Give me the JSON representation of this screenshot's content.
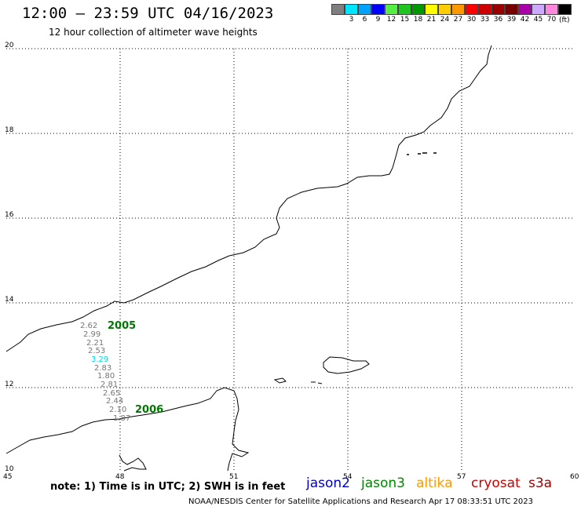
{
  "header": {
    "title": "12:00 – 23:59 UTC 04/16/2023",
    "subtitle": "12 hour collection of altimeter wave heights"
  },
  "legend": {
    "colors": [
      "#7f7f7f",
      "#00e5ff",
      "#00a2ff",
      "#0000ff",
      "#55ee44",
      "#22c422",
      "#009900",
      "#ffff00",
      "#ffcc00",
      "#ff9900",
      "#ff0000",
      "#cc0000",
      "#990000",
      "#770000",
      "#aa00aa",
      "#ccaaff",
      "#ff88dd",
      "#000000"
    ],
    "labels": [
      "3",
      "6",
      "9",
      "12",
      "15",
      "18",
      "21",
      "24",
      "27",
      "30",
      "33",
      "36",
      "39",
      "42",
      "45",
      "70"
    ],
    "unit": "(ft)"
  },
  "axes": {
    "lat_labels": [
      "20",
      "18",
      "16",
      "14",
      "12",
      "10"
    ],
    "lon_labels": [
      "45",
      "48",
      "51",
      "54",
      "57",
      "60"
    ]
  },
  "observations": [
    {
      "value": "2.62",
      "color": "#777777"
    },
    {
      "value": "2.99",
      "color": "#777777"
    },
    {
      "value": "2.21",
      "color": "#777777"
    },
    {
      "value": "2.53",
      "color": "#777777"
    },
    {
      "value": "3.29",
      "color": "#00d8e8"
    },
    {
      "value": "2.83",
      "color": "#777777"
    },
    {
      "value": "1.80",
      "color": "#777777"
    },
    {
      "value": "2.81",
      "color": "#777777"
    },
    {
      "value": "2.65",
      "color": "#777777"
    },
    {
      "value": "2.44",
      "color": "#777777"
    },
    {
      "value": "2.10",
      "color": "#777777"
    },
    {
      "value": "1.87",
      "color": "#777777"
    }
  ],
  "passes": [
    {
      "label": "2005",
      "color": "#007700"
    },
    {
      "label": "2006",
      "color": "#007700"
    }
  ],
  "footer": {
    "note": "note: 1) Time is in UTC; 2) SWH is in feet",
    "satellites": [
      {
        "name": "jason2",
        "color": "#0000cc"
      },
      {
        "name": "jason3",
        "color": "#008800"
      },
      {
        "name": "altika",
        "color": "#ff9900"
      },
      {
        "name": "cryosat",
        "color": "#cc0000"
      },
      {
        "name": "s3a",
        "color": "#990000"
      }
    ],
    "credit": "NOAA/NESDIS Center for Satellite Applications and Research   Apr 17 08:33:51 UTC 2023"
  }
}
